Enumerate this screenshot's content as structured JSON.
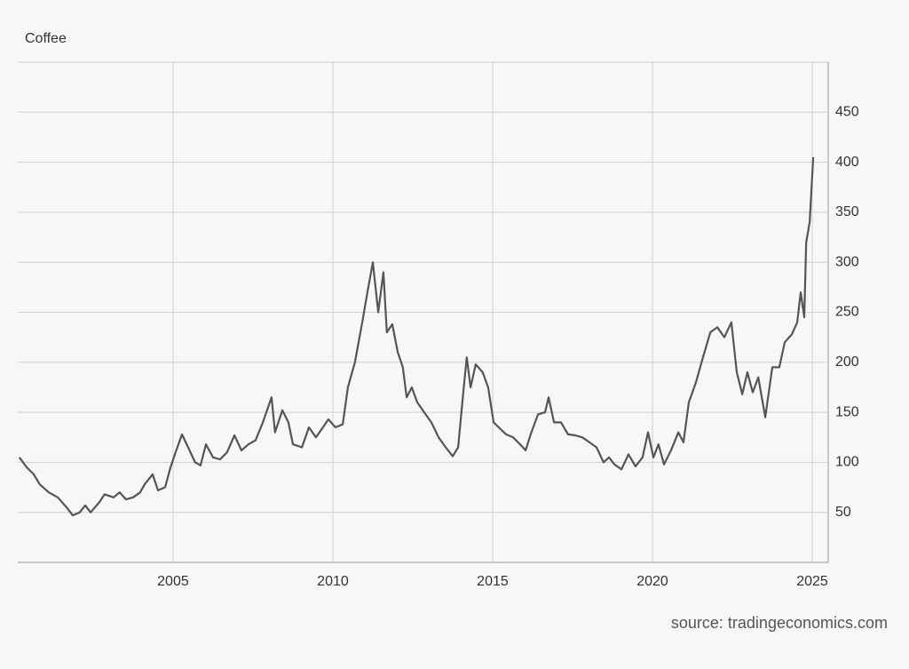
{
  "chart_data": {
    "type": "line",
    "title": "Coffee",
    "source": "source: tradingeconomics.com",
    "x": [
      2000.19,
      2000.42,
      2000.64,
      2000.83,
      2001.11,
      2001.39,
      2001.67,
      2001.86,
      2002.08,
      2002.25,
      2002.42,
      2002.69,
      2002.86,
      2003.14,
      2003.33,
      2003.53,
      2003.75,
      2003.97,
      2004.11,
      2004.36,
      2004.53,
      2004.75,
      2004.92,
      2005.08,
      2005.28,
      2005.47,
      2005.69,
      2005.86,
      2006.03,
      2006.25,
      2006.47,
      2006.69,
      2006.92,
      2007.14,
      2007.36,
      2007.58,
      2007.81,
      2008.08,
      2008.19,
      2008.42,
      2008.61,
      2008.75,
      2009.03,
      2009.25,
      2009.47,
      2009.69,
      2009.86,
      2010.08,
      2010.31,
      2010.47,
      2010.69,
      2010.92,
      2011.08,
      2011.25,
      2011.42,
      2011.58,
      2011.69,
      2011.86,
      2012.03,
      2012.19,
      2012.31,
      2012.47,
      2012.64,
      2012.86,
      2013.08,
      2013.31,
      2013.53,
      2013.75,
      2013.92,
      2014.08,
      2014.19,
      2014.31,
      2014.47,
      2014.69,
      2014.86,
      2015.03,
      2015.19,
      2015.42,
      2015.64,
      2015.86,
      2016.03,
      2016.19,
      2016.42,
      2016.64,
      2016.75,
      2016.92,
      2017.14,
      2017.36,
      2017.58,
      2017.81,
      2018.03,
      2018.25,
      2018.47,
      2018.64,
      2018.81,
      2019.03,
      2019.25,
      2019.47,
      2019.69,
      2019.86,
      2020.03,
      2020.19,
      2020.36,
      2020.58,
      2020.81,
      2020.97,
      2021.14,
      2021.36,
      2021.58,
      2021.81,
      2022.03,
      2022.25,
      2022.47,
      2022.64,
      2022.81,
      2022.97,
      2023.14,
      2023.31,
      2023.53,
      2023.75,
      2023.97,
      2024.14,
      2024.36,
      2024.53,
      2024.64,
      2024.75,
      2024.81,
      2024.92,
      2025.03
    ],
    "series": [
      {
        "color": "#555555",
        "values": [
          105,
          95,
          88,
          78,
          70,
          65,
          55,
          47,
          50,
          57,
          50,
          60,
          68,
          65,
          70,
          63,
          65,
          70,
          78,
          88,
          72,
          75,
          95,
          110,
          128,
          115,
          100,
          97,
          118,
          105,
          103,
          110,
          127,
          112,
          118,
          122,
          140,
          165,
          130,
          152,
          140,
          118,
          115,
          135,
          125,
          135,
          143,
          135,
          138,
          175,
          200,
          240,
          270,
          300,
          250,
          290,
          230,
          238,
          210,
          195,
          165,
          175,
          160,
          150,
          140,
          125,
          115,
          106,
          115,
          170,
          205,
          175,
          198,
          190,
          175,
          140,
          135,
          128,
          125,
          118,
          112,
          128,
          148,
          150,
          165,
          140,
          140,
          128,
          127,
          125,
          120,
          115,
          100,
          105,
          98,
          93,
          108,
          96,
          105,
          130,
          105,
          118,
          98,
          112,
          130,
          120,
          160,
          180,
          205,
          230,
          235,
          225,
          240,
          190,
          168,
          190,
          170,
          185,
          145,
          195,
          195,
          220,
          228,
          240,
          270,
          245,
          320,
          340,
          405
        ]
      }
    ],
    "xlim": [
      2000.14,
      2025.5
    ],
    "xticks": [
      2005,
      2010,
      2015,
      2020,
      2025
    ],
    "ylim": [
      0,
      500
    ],
    "yticks": [
      50,
      100,
      150,
      200,
      250,
      300,
      350,
      400,
      450
    ],
    "grid": true
  }
}
